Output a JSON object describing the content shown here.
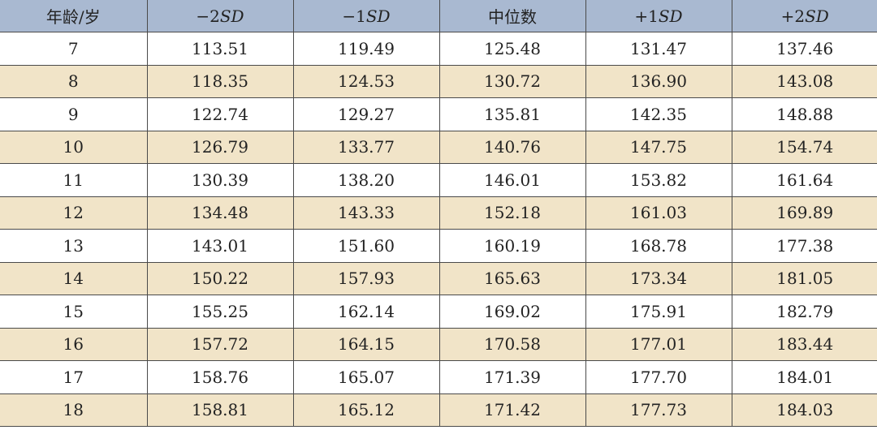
{
  "table": {
    "headers": [
      {
        "prefix": "年龄/岁",
        "suffix": ""
      },
      {
        "prefix": "−2",
        "suffix": "SD"
      },
      {
        "prefix": "−1",
        "suffix": "SD"
      },
      {
        "prefix": "中位数",
        "suffix": ""
      },
      {
        "prefix": "+1",
        "suffix": "SD"
      },
      {
        "prefix": "+2",
        "suffix": "SD"
      }
    ],
    "rows": [
      [
        "7",
        "113.51",
        "119.49",
        "125.48",
        "131.47",
        "137.46"
      ],
      [
        "8",
        "118.35",
        "124.53",
        "130.72",
        "136.90",
        "143.08"
      ],
      [
        "9",
        "122.74",
        "129.27",
        "135.81",
        "142.35",
        "148.88"
      ],
      [
        "10",
        "126.79",
        "133.77",
        "140.76",
        "147.75",
        "154.74"
      ],
      [
        "11",
        "130.39",
        "138.20",
        "146.01",
        "153.82",
        "161.64"
      ],
      [
        "12",
        "134.48",
        "143.33",
        "152.18",
        "161.03",
        "169.89"
      ],
      [
        "13",
        "143.01",
        "151.60",
        "160.19",
        "168.78",
        "177.38"
      ],
      [
        "14",
        "150.22",
        "157.93",
        "165.63",
        "173.34",
        "181.05"
      ],
      [
        "15",
        "155.25",
        "162.14",
        "169.02",
        "175.91",
        "182.79"
      ],
      [
        "16",
        "157.72",
        "164.15",
        "170.58",
        "177.01",
        "183.44"
      ],
      [
        "17",
        "158.76",
        "165.07",
        "171.39",
        "177.70",
        "184.01"
      ],
      [
        "18",
        "158.81",
        "165.12",
        "171.42",
        "177.73",
        "184.03"
      ]
    ]
  },
  "colors": {
    "header_bg": "#a9b9d1",
    "alt_row_bg": "#f1e4c8",
    "row_bg": "#ffffff",
    "border": "#4a4a4a"
  }
}
